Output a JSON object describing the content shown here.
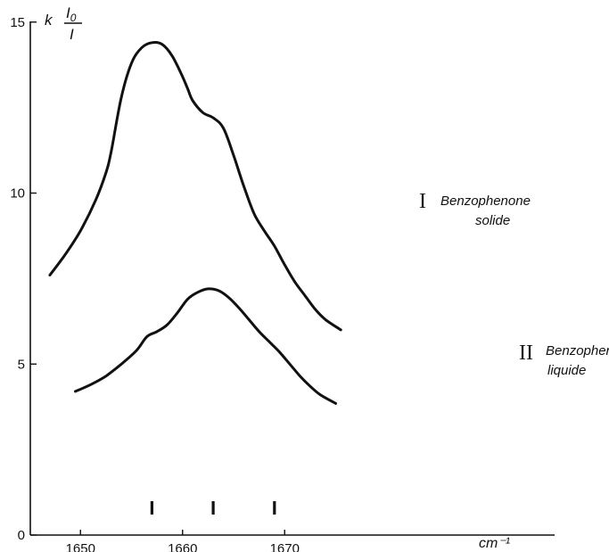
{
  "chart_data": {
    "type": "line",
    "x_unit_label": "cm⁻¹",
    "ylabel": {
      "k": "k",
      "numerator": "I",
      "numerator_sub": "0",
      "denominator": "I"
    },
    "xlim": [
      1645,
      1677
    ],
    "ylim": [
      0,
      15
    ],
    "x_ticks": [
      1650,
      1660,
      1670
    ],
    "x_tick_labels": [
      "1650",
      "1660",
      "1670"
    ],
    "y_ticks": [
      0,
      5,
      10,
      15
    ],
    "y_tick_labels": [
      "0",
      "5",
      "10",
      "15"
    ],
    "grid": false,
    "series": [
      {
        "numeral": "I",
        "name_line1": "Benzophenone",
        "name_line2": "solide",
        "x": [
          1647,
          1648.5,
          1650,
          1651.5,
          1652.5,
          1653,
          1654,
          1655,
          1656,
          1657,
          1658,
          1659,
          1660,
          1660.5,
          1661,
          1662,
          1663,
          1664,
          1665,
          1666,
          1667,
          1668,
          1669,
          1670,
          1671,
          1672,
          1673,
          1674,
          1675.5
        ],
        "y": [
          7.6,
          8.2,
          8.9,
          9.8,
          10.6,
          11.2,
          12.8,
          13.8,
          14.25,
          14.4,
          14.35,
          14.0,
          13.4,
          13.05,
          12.7,
          12.35,
          12.2,
          11.9,
          11.1,
          10.2,
          9.4,
          8.9,
          8.45,
          7.9,
          7.4,
          7.0,
          6.6,
          6.3,
          6.0
        ]
      },
      {
        "numeral": "II",
        "name_line1": "Benzophenone",
        "name_line2": "liquide",
        "x": [
          1649.5,
          1651,
          1652.5,
          1654,
          1655.5,
          1656.5,
          1657.5,
          1658.5,
          1659.5,
          1660.5,
          1661.5,
          1662.5,
          1663.5,
          1664.5,
          1665.5,
          1666.5,
          1667.5,
          1668.5,
          1669.5,
          1670.5,
          1671.5,
          1672.5,
          1673.5,
          1675
        ],
        "y": [
          4.2,
          4.4,
          4.65,
          5.0,
          5.4,
          5.8,
          5.95,
          6.15,
          6.5,
          6.9,
          7.1,
          7.2,
          7.15,
          6.95,
          6.65,
          6.3,
          5.95,
          5.65,
          5.35,
          5.0,
          4.65,
          4.35,
          4.1,
          3.85
        ]
      }
    ],
    "band_markers_x": [
      1657,
      1663,
      1669
    ]
  }
}
